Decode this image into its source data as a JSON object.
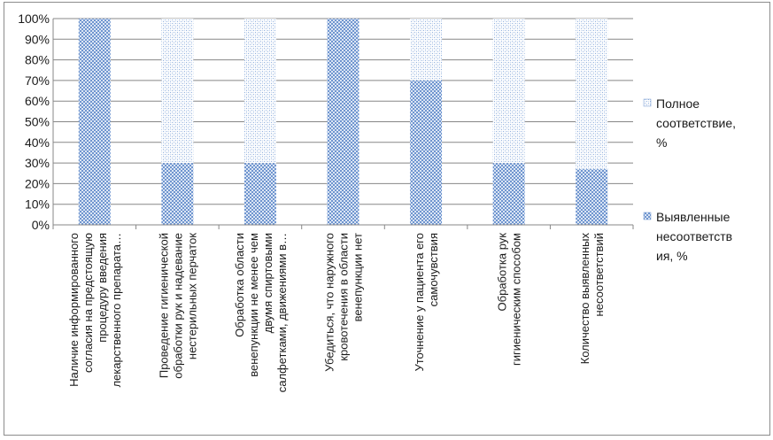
{
  "chart_data": {
    "type": "bar",
    "stacked": true,
    "percent": true,
    "categories": [
      [
        "Наличие информированного",
        "согласия на предстоящую",
        "процедуру введения",
        "лекарственного препарата…"
      ],
      [
        "Проведение гигиенической",
        "обработки рук и надевание",
        "нестерильных перчаток"
      ],
      [
        "Обработка области",
        "венепункции не менее чем",
        "двумя спиртовыми",
        "салфетками, движениями в…"
      ],
      [
        "Убедиться, что наружного",
        "кровотечения в области",
        "венепункции нет"
      ],
      [
        "Уточнение у пациента его",
        "самочувствия"
      ],
      [
        "Обработка рук",
        "гигиеническим способом"
      ],
      [
        "Количество выявленных",
        "несоответствий"
      ]
    ],
    "series": [
      {
        "name": "Выявленные несоответствия, %",
        "legend_lines": [
          "Выявленные",
          "несоответств",
          "ия, %"
        ],
        "color": "#6f95cf",
        "values": [
          100,
          30,
          30,
          100,
          70,
          30,
          27
        ]
      },
      {
        "name": "Полное соответствие, %",
        "legend_lines": [
          "Полное",
          "соответствие,",
          "%"
        ],
        "color": "#b7cdea",
        "values": [
          0,
          70,
          70,
          0,
          30,
          70,
          73
        ]
      }
    ],
    "yticks": [
      "0%",
      "10%",
      "20%",
      "30%",
      "40%",
      "50%",
      "60%",
      "70%",
      "80%",
      "90%",
      "100%"
    ],
    "ylim": [
      0,
      100
    ],
    "grid": true,
    "legend_position": "right"
  }
}
